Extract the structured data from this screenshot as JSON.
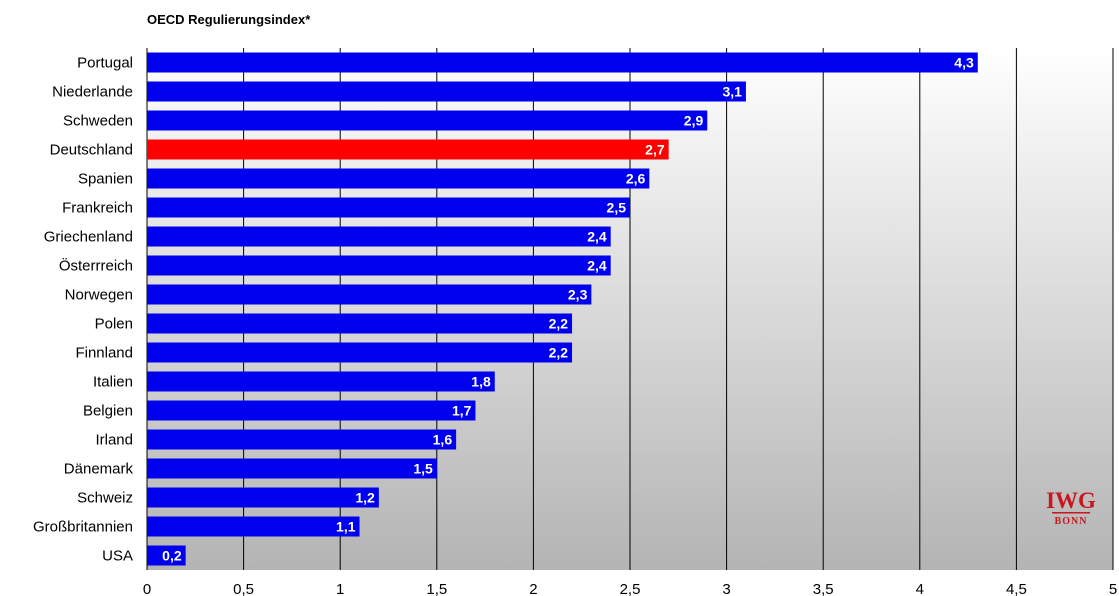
{
  "chart_data": {
    "type": "bar",
    "orientation": "horizontal",
    "title": "OECD Regulierungsindex*",
    "xlabel": "",
    "ylabel": "",
    "xlim": [
      0,
      5
    ],
    "x_ticks": [
      "0",
      "0,5",
      "1",
      "1,5",
      "2",
      "2,5",
      "3",
      "3,5",
      "4",
      "4,5",
      "5"
    ],
    "grid": "vertical",
    "categories": [
      "Portugal",
      "Niederlande",
      "Schweden",
      "Deutschland",
      "Spanien",
      "Frankreich",
      "Griechenland",
      "Österrreich",
      "Norwegen",
      "Polen",
      "Finnland",
      "Italien",
      "Belgien",
      "Irland",
      "Dänemark",
      "Schweiz",
      "Großbritannien",
      "USA"
    ],
    "values": [
      4.3,
      3.1,
      2.9,
      2.7,
      2.6,
      2.5,
      2.4,
      2.4,
      2.3,
      2.2,
      2.2,
      1.8,
      1.7,
      1.6,
      1.5,
      1.2,
      1.1,
      0.2
    ],
    "value_labels": [
      "4,3",
      "3,1",
      "2,9",
      "2,7",
      "2,6",
      "2,5",
      "2,4",
      "2,4",
      "2,3",
      "2,2",
      "2,2",
      "1,8",
      "1,7",
      "1,6",
      "1,5",
      "1,2",
      "1,1",
      "0,2"
    ],
    "bar_color": "#0000ee",
    "highlight_color": "#ff0000",
    "highlight_category": "Deutschland"
  },
  "logo": {
    "top_text": "IWG",
    "bottom_text": "BONN",
    "color": "#c8171e"
  }
}
